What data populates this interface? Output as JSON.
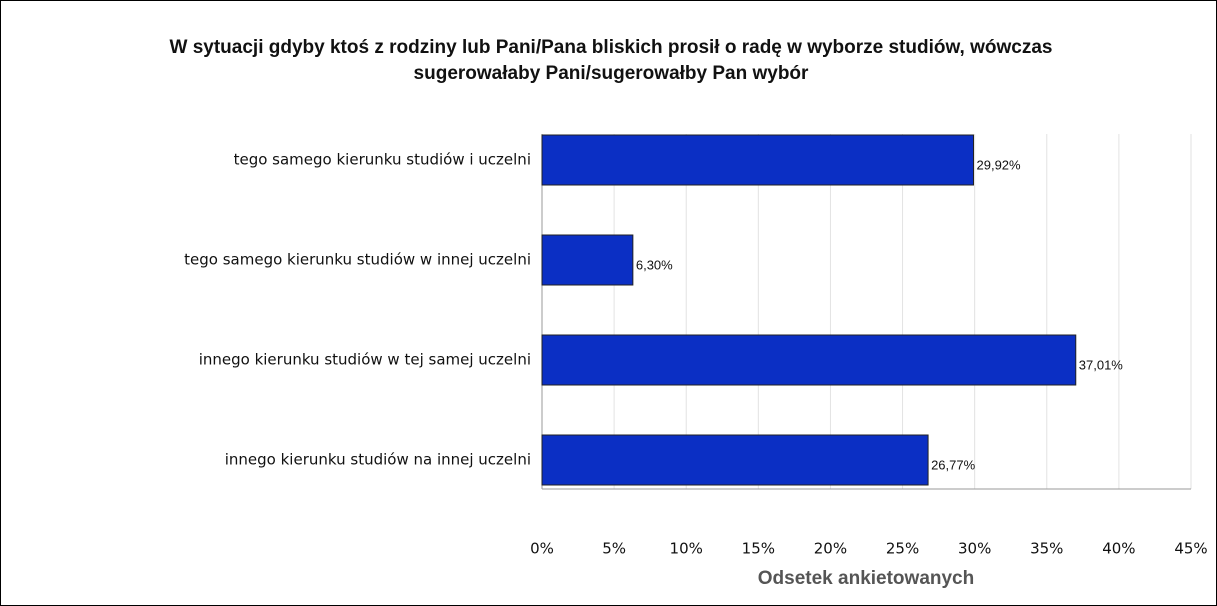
{
  "chart_data": {
    "type": "bar",
    "orientation": "horizontal",
    "title": "W sytuacji gdyby ktoś z rodziny lub Pani/Pana bliskich prosił o radę w wyborze studiów, wówczas sugerowałaby Pani/sugerowałby Pan wybór",
    "categories": [
      "tego samego kierunku studiów i uczelni",
      "tego samego kierunku studiów w innej uczelni",
      "innego kierunku studiów w tej samej uczelni",
      "innego kierunku studiów na innej uczelni"
    ],
    "values": [
      29.92,
      6.3,
      37.01,
      26.77
    ],
    "value_labels": [
      "29,92%",
      "6,30%",
      "37,01%",
      "26,77%"
    ],
    "color": "#0b2fc4",
    "xlabel": "Odsetek ankietowanych",
    "xlim": [
      0,
      45
    ],
    "xticks": [
      {
        "value": 0,
        "label": "0%"
      },
      {
        "value": 5,
        "label": "5%"
      },
      {
        "value": 10,
        "label": "10%"
      },
      {
        "value": 15,
        "label": "15%"
      },
      {
        "value": 20,
        "label": "20%"
      },
      {
        "value": 25,
        "label": "25%"
      },
      {
        "value": 30,
        "label": "30%"
      },
      {
        "value": 35,
        "label": "35%"
      },
      {
        "value": 40,
        "label": "40%"
      },
      {
        "value": 45,
        "label": "45%"
      }
    ],
    "grid": true
  }
}
